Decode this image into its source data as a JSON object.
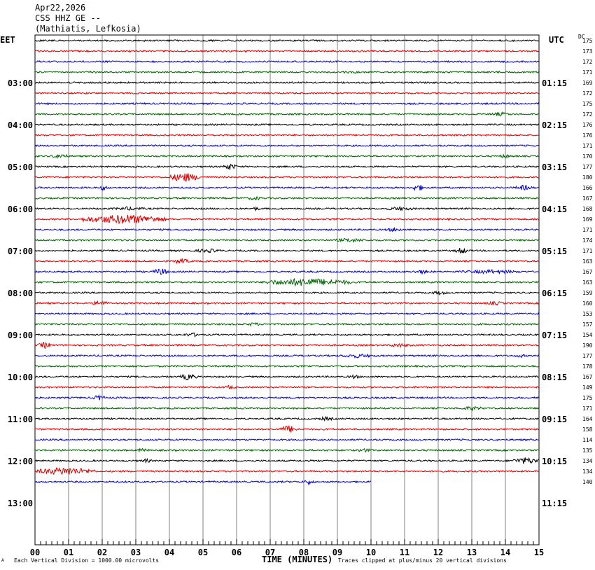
{
  "header": {
    "date": "Apr22,2026",
    "station": "CSS HHZ GE --",
    "location": "(Mathiatis, Lefkosia)"
  },
  "left_timezone": "EET",
  "right_timezone": "UTC",
  "dc_label": "DC",
  "footer": {
    "xlabel": "TIME (MINUTES)",
    "scale_note": "Each Vertical Division = 1000.00 microvolts",
    "clip_note": "Traces clipped at plus/minus 20 vertical divisions",
    "corner_mark": "A"
  },
  "colors": {
    "black": "#000000",
    "red": "#e00000",
    "blue": "#0000d0",
    "green": "#006400",
    "grid": "#808080"
  },
  "chart_data": {
    "type": "line",
    "title": "",
    "xlabel": "TIME (MINUTES)",
    "xlim": [
      0,
      15
    ],
    "x_ticks": [
      "00",
      "01",
      "02",
      "03",
      "04",
      "05",
      "06",
      "07",
      "08",
      "09",
      "10",
      "11",
      "12",
      "13",
      "14",
      "15"
    ],
    "trace_interval_minutes": 15,
    "trace_color_cycle": [
      "black",
      "red",
      "blue",
      "green"
    ],
    "left_hour_labels": [
      "03:00",
      "04:00",
      "05:00",
      "06:00",
      "07:00",
      "08:00",
      "09:00",
      "10:00",
      "11:00",
      "12:00",
      "13:00"
    ],
    "right_hour_labels": [
      "01:15",
      "02:15",
      "03:15",
      "04:15",
      "05:15",
      "06:15",
      "07:15",
      "08:15",
      "09:15",
      "10:15",
      "11:15"
    ],
    "dc_offsets": [
      175,
      173,
      172,
      171,
      169,
      172,
      175,
      172,
      176,
      176,
      171,
      170,
      177,
      180,
      166,
      167,
      168,
      169,
      171,
      174,
      171,
      163,
      167,
      163,
      159,
      160,
      153,
      157,
      154,
      190,
      177,
      178,
      167,
      149,
      175,
      171,
      164,
      158,
      114,
      135,
      134,
      134,
      140
    ],
    "last_trace_end_minute": 10,
    "bursts": [
      {
        "trace": 3,
        "start": 9.0,
        "end": 9.8,
        "amp": 2
      },
      {
        "trace": 7,
        "start": 13.5,
        "end": 14.2,
        "amp": 3
      },
      {
        "trace": 11,
        "start": 0.5,
        "end": 1.0,
        "amp": 4
      },
      {
        "trace": 11,
        "start": 13.8,
        "end": 14.2,
        "amp": 3
      },
      {
        "trace": 12,
        "start": 5.6,
        "end": 6.0,
        "amp": 5
      },
      {
        "trace": 13,
        "start": 4.0,
        "end": 4.9,
        "amp": 7
      },
      {
        "trace": 14,
        "start": 11.2,
        "end": 11.6,
        "amp": 5
      },
      {
        "trace": 14,
        "start": 14.3,
        "end": 14.8,
        "amp": 4
      },
      {
        "trace": 14,
        "start": 1.9,
        "end": 2.2,
        "amp": 4
      },
      {
        "trace": 15,
        "start": 6.3,
        "end": 6.8,
        "amp": 3
      },
      {
        "trace": 16,
        "start": 2.3,
        "end": 3.3,
        "amp": 3
      },
      {
        "trace": 16,
        "start": 6.4,
        "end": 6.7,
        "amp": 3
      },
      {
        "trace": 16,
        "start": 10.4,
        "end": 11.3,
        "amp": 3
      },
      {
        "trace": 17,
        "start": 1.4,
        "end": 3.9,
        "amp": 7
      },
      {
        "trace": 18,
        "start": 10.4,
        "end": 11.0,
        "amp": 3
      },
      {
        "trace": 19,
        "start": 8.8,
        "end": 10.0,
        "amp": 3
      },
      {
        "trace": 20,
        "start": 12.5,
        "end": 12.9,
        "amp": 5
      },
      {
        "trace": 20,
        "start": 4.7,
        "end": 5.6,
        "amp": 3
      },
      {
        "trace": 21,
        "start": 4.1,
        "end": 4.6,
        "amp": 4
      },
      {
        "trace": 22,
        "start": 3.5,
        "end": 4.0,
        "amp": 5
      },
      {
        "trace": 22,
        "start": 11.2,
        "end": 11.8,
        "amp": 3
      },
      {
        "trace": 22,
        "start": 12.6,
        "end": 14.6,
        "amp": 3
      },
      {
        "trace": 23,
        "start": 6.8,
        "end": 9.4,
        "amp": 6
      },
      {
        "trace": 24,
        "start": 11.8,
        "end": 12.3,
        "amp": 3
      },
      {
        "trace": 25,
        "start": 1.7,
        "end": 2.2,
        "amp": 4
      },
      {
        "trace": 25,
        "start": 13.4,
        "end": 14.0,
        "amp": 3
      },
      {
        "trace": 27,
        "start": 6.3,
        "end": 6.7,
        "amp": 3
      },
      {
        "trace": 28,
        "start": 4.4,
        "end": 5.0,
        "amp": 3
      },
      {
        "trace": 29,
        "start": 0.1,
        "end": 0.5,
        "amp": 5
      },
      {
        "trace": 29,
        "start": 10.5,
        "end": 11.2,
        "amp": 3
      },
      {
        "trace": 30,
        "start": 9.0,
        "end": 10.2,
        "amp": 3
      },
      {
        "trace": 30,
        "start": 14.3,
        "end": 14.6,
        "amp": 3
      },
      {
        "trace": 32,
        "start": 4.3,
        "end": 4.8,
        "amp": 5
      },
      {
        "trace": 32,
        "start": 9.3,
        "end": 9.7,
        "amp": 3
      },
      {
        "trace": 33,
        "start": 5.6,
        "end": 6.0,
        "amp": 3
      },
      {
        "trace": 34,
        "start": 1.7,
        "end": 2.1,
        "amp": 4
      },
      {
        "trace": 35,
        "start": 12.6,
        "end": 13.4,
        "amp": 3
      },
      {
        "trace": 36,
        "start": 8.4,
        "end": 8.9,
        "amp": 3
      },
      {
        "trace": 37,
        "start": 7.3,
        "end": 7.8,
        "amp": 6
      },
      {
        "trace": 39,
        "start": 3.0,
        "end": 3.4,
        "amp": 3
      },
      {
        "trace": 39,
        "start": 9.6,
        "end": 10.0,
        "amp": 3
      },
      {
        "trace": 40,
        "start": 14.2,
        "end": 15.0,
        "amp": 5
      },
      {
        "trace": 40,
        "start": 3.1,
        "end": 3.5,
        "amp": 3
      },
      {
        "trace": 41,
        "start": 0.0,
        "end": 1.8,
        "amp": 6
      },
      {
        "trace": 42,
        "start": 8.0,
        "end": 8.3,
        "amp": 4
      }
    ]
  }
}
